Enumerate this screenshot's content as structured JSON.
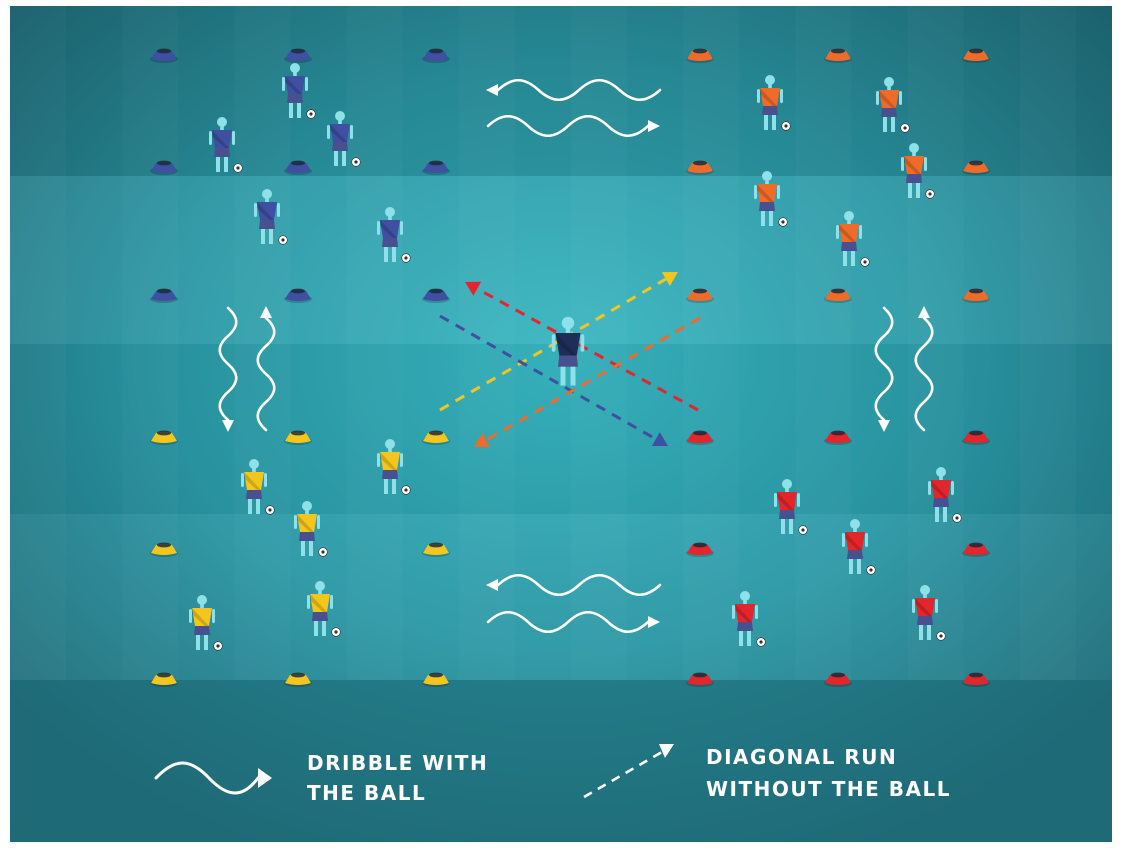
{
  "legend": {
    "dribble": {
      "line1": "DRIBBLE WITH",
      "line2": "THE BALL",
      "icon": "wavy-arrow-icon"
    },
    "run": {
      "line1": "DIAGONAL RUN",
      "line2": "WITHOUT THE BALL",
      "icon": "dashed-arrow-icon"
    }
  },
  "colors": {
    "pitch_dark": "#21707d",
    "pitch_mid": "#2893a0",
    "pitch_light": "#35b3bf",
    "blue_team": "#3f4fa2",
    "orange_team": "#ee6b2a",
    "yellow_team": "#f3c61d",
    "red_team": "#e3262c",
    "coach": "#1e2e58",
    "white": "#ffffff"
  },
  "teams": [
    "blue",
    "orange",
    "yellow",
    "red"
  ],
  "players_per_team": 5,
  "coach_count": 1
}
